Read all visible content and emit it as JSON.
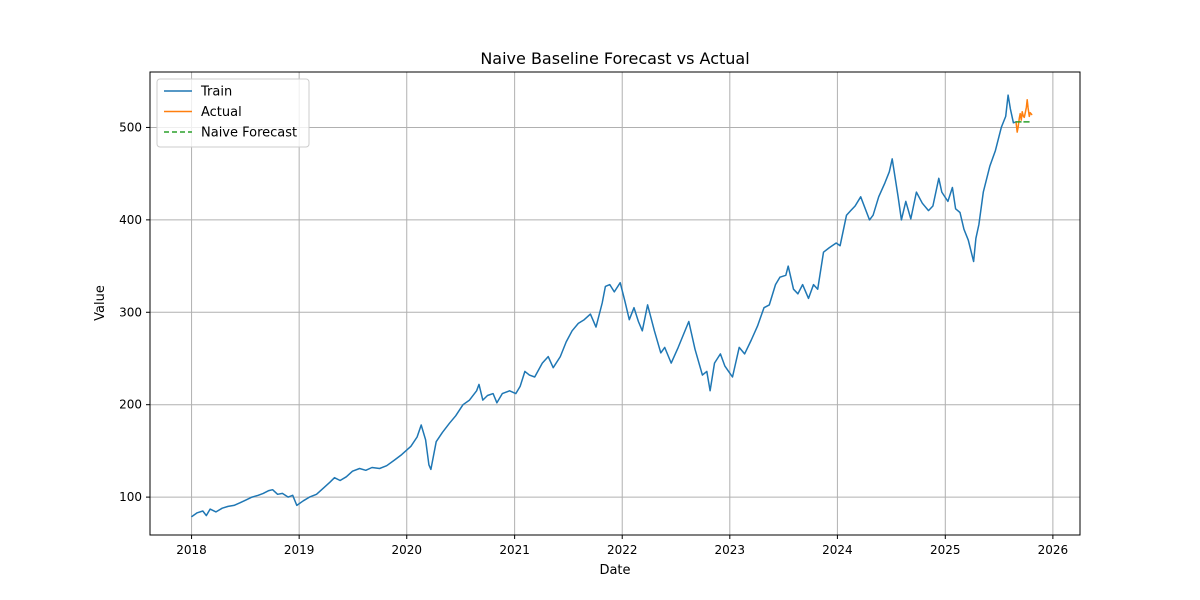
{
  "chart_data": {
    "type": "line",
    "title": "Naive Baseline Forecast vs Actual",
    "xlabel": "Date",
    "ylabel": "Value",
    "x_scale": "time",
    "xlim": [
      "2017-08-13",
      "2026-04-03"
    ],
    "ylim": [
      59,
      560
    ],
    "grid": true,
    "legend_position": "upper-left",
    "x_ticks": [
      "2018",
      "2019",
      "2020",
      "2021",
      "2022",
      "2023",
      "2024",
      "2025",
      "2026"
    ],
    "y_ticks": [
      100,
      200,
      300,
      400,
      500
    ],
    "series": [
      {
        "name": "Train",
        "color": "#1f77b4",
        "style": "solid",
        "points": [
          [
            "2018-01-02",
            79
          ],
          [
            "2018-01-20",
            83
          ],
          [
            "2018-02-08",
            85
          ],
          [
            "2018-02-20",
            80
          ],
          [
            "2018-03-05",
            87
          ],
          [
            "2018-03-25",
            84
          ],
          [
            "2018-04-15",
            88
          ],
          [
            "2018-05-05",
            90
          ],
          [
            "2018-05-25",
            91
          ],
          [
            "2018-06-15",
            94
          ],
          [
            "2018-07-05",
            97
          ],
          [
            "2018-07-25",
            100
          ],
          [
            "2018-08-15",
            102
          ],
          [
            "2018-09-01",
            104
          ],
          [
            "2018-09-20",
            107
          ],
          [
            "2018-10-03",
            108
          ],
          [
            "2018-10-20",
            103
          ],
          [
            "2018-11-05",
            104
          ],
          [
            "2018-11-25",
            100
          ],
          [
            "2018-12-10",
            102
          ],
          [
            "2018-12-24",
            91
          ],
          [
            "2019-01-15",
            96
          ],
          [
            "2019-02-05",
            100
          ],
          [
            "2019-03-01",
            103
          ],
          [
            "2019-03-25",
            110
          ],
          [
            "2019-04-15",
            116
          ],
          [
            "2019-05-01",
            121
          ],
          [
            "2019-05-20",
            118
          ],
          [
            "2019-06-10",
            122
          ],
          [
            "2019-07-01",
            128
          ],
          [
            "2019-07-25",
            131
          ],
          [
            "2019-08-15",
            129
          ],
          [
            "2019-09-05",
            132
          ],
          [
            "2019-10-01",
            131
          ],
          [
            "2019-10-25",
            134
          ],
          [
            "2019-11-20",
            140
          ],
          [
            "2019-12-15",
            146
          ],
          [
            "2020-01-15",
            155
          ],
          [
            "2020-02-05",
            165
          ],
          [
            "2020-02-19",
            178
          ],
          [
            "2020-03-05",
            162
          ],
          [
            "2020-03-16",
            135
          ],
          [
            "2020-03-23",
            130
          ],
          [
            "2020-04-10",
            160
          ],
          [
            "2020-05-01",
            170
          ],
          [
            "2020-05-25",
            180
          ],
          [
            "2020-06-15",
            188
          ],
          [
            "2020-07-10",
            200
          ],
          [
            "2020-08-01",
            205
          ],
          [
            "2020-08-25",
            215
          ],
          [
            "2020-09-02",
            222
          ],
          [
            "2020-09-15",
            205
          ],
          [
            "2020-10-01",
            210
          ],
          [
            "2020-10-20",
            212
          ],
          [
            "2020-11-02",
            202
          ],
          [
            "2020-11-20",
            212
          ],
          [
            "2020-12-15",
            215
          ],
          [
            "2021-01-05",
            212
          ],
          [
            "2021-01-20",
            220
          ],
          [
            "2021-02-05",
            236
          ],
          [
            "2021-02-20",
            232
          ],
          [
            "2021-03-10",
            230
          ],
          [
            "2021-04-05",
            245
          ],
          [
            "2021-04-25",
            252
          ],
          [
            "2021-05-12",
            240
          ],
          [
            "2021-06-05",
            252
          ],
          [
            "2021-06-25",
            268
          ],
          [
            "2021-07-15",
            280
          ],
          [
            "2021-08-05",
            288
          ],
          [
            "2021-08-25",
            292
          ],
          [
            "2021-09-15",
            298
          ],
          [
            "2021-10-04",
            284
          ],
          [
            "2021-10-25",
            310
          ],
          [
            "2021-11-05",
            328
          ],
          [
            "2021-11-20",
            330
          ],
          [
            "2021-12-05",
            322
          ],
          [
            "2021-12-25",
            332
          ],
          [
            "2022-01-10",
            312
          ],
          [
            "2022-01-25",
            292
          ],
          [
            "2022-02-10",
            305
          ],
          [
            "2022-02-25",
            290
          ],
          [
            "2022-03-10",
            280
          ],
          [
            "2022-03-28",
            308
          ],
          [
            "2022-04-20",
            280
          ],
          [
            "2022-05-12",
            256
          ],
          [
            "2022-05-25",
            262
          ],
          [
            "2022-06-16",
            245
          ],
          [
            "2022-07-10",
            262
          ],
          [
            "2022-08-15",
            290
          ],
          [
            "2022-09-05",
            260
          ],
          [
            "2022-09-30",
            232
          ],
          [
            "2022-10-15",
            236
          ],
          [
            "2022-10-26",
            215
          ],
          [
            "2022-11-10",
            245
          ],
          [
            "2022-11-30",
            255
          ],
          [
            "2022-12-15",
            242
          ],
          [
            "2022-12-28",
            236
          ],
          [
            "2023-01-10",
            230
          ],
          [
            "2023-02-02",
            262
          ],
          [
            "2023-02-20",
            255
          ],
          [
            "2023-03-15",
            270
          ],
          [
            "2023-04-05",
            285
          ],
          [
            "2023-04-27",
            305
          ],
          [
            "2023-05-15",
            308
          ],
          [
            "2023-06-05",
            330
          ],
          [
            "2023-06-20",
            338
          ],
          [
            "2023-07-10",
            340
          ],
          [
            "2023-07-18",
            350
          ],
          [
            "2023-08-05",
            325
          ],
          [
            "2023-08-20",
            320
          ],
          [
            "2023-09-05",
            330
          ],
          [
            "2023-09-25",
            315
          ],
          [
            "2023-10-12",
            330
          ],
          [
            "2023-10-26",
            325
          ],
          [
            "2023-11-15",
            365
          ],
          [
            "2023-12-05",
            370
          ],
          [
            "2023-12-28",
            375
          ],
          [
            "2024-01-10",
            372
          ],
          [
            "2024-02-01",
            405
          ],
          [
            "2024-02-15",
            410
          ],
          [
            "2024-03-01",
            415
          ],
          [
            "2024-03-20",
            425
          ],
          [
            "2024-04-19",
            400
          ],
          [
            "2024-05-01",
            405
          ],
          [
            "2024-05-20",
            425
          ],
          [
            "2024-06-10",
            440
          ],
          [
            "2024-06-25",
            452
          ],
          [
            "2024-07-05",
            466
          ],
          [
            "2024-07-25",
            425
          ],
          [
            "2024-08-05",
            400
          ],
          [
            "2024-08-20",
            420
          ],
          [
            "2024-09-06",
            401
          ],
          [
            "2024-09-25",
            430
          ],
          [
            "2024-10-15",
            418
          ],
          [
            "2024-11-05",
            410
          ],
          [
            "2024-11-20",
            415
          ],
          [
            "2024-12-10",
            445
          ],
          [
            "2024-12-20",
            430
          ],
          [
            "2025-01-10",
            420
          ],
          [
            "2025-01-25",
            435
          ],
          [
            "2025-02-05",
            412
          ],
          [
            "2025-02-20",
            408
          ],
          [
            "2025-03-05",
            390
          ],
          [
            "2025-03-20",
            378
          ],
          [
            "2025-04-07",
            355
          ],
          [
            "2025-04-15",
            380
          ],
          [
            "2025-04-25",
            395
          ],
          [
            "2025-05-10",
            430
          ],
          [
            "2025-06-01",
            458
          ],
          [
            "2025-06-20",
            475
          ],
          [
            "2025-07-10",
            500
          ],
          [
            "2025-07-25",
            512
          ],
          [
            "2025-08-02",
            535
          ],
          [
            "2025-08-10",
            520
          ],
          [
            "2025-08-20",
            505
          ],
          [
            "2025-08-29",
            506
          ]
        ]
      },
      {
        "name": "Actual",
        "color": "#ff7f0e",
        "style": "solid",
        "points": [
          [
            "2025-08-29",
            506
          ],
          [
            "2025-09-02",
            495
          ],
          [
            "2025-09-05",
            500
          ],
          [
            "2025-09-09",
            510
          ],
          [
            "2025-09-12",
            515
          ],
          [
            "2025-09-16",
            508
          ],
          [
            "2025-09-19",
            517
          ],
          [
            "2025-09-23",
            512
          ],
          [
            "2025-09-26",
            511
          ],
          [
            "2025-09-30",
            517
          ],
          [
            "2025-10-03",
            522
          ],
          [
            "2025-10-06",
            530
          ],
          [
            "2025-10-09",
            521
          ],
          [
            "2025-10-13",
            512
          ],
          [
            "2025-10-16",
            516
          ],
          [
            "2025-10-21",
            514
          ]
        ]
      },
      {
        "name": "Naive Forecast",
        "color": "#2ca02c",
        "style": "dashed",
        "points": [
          [
            "2025-08-29",
            506
          ],
          [
            "2025-10-21",
            506
          ]
        ]
      }
    ]
  }
}
